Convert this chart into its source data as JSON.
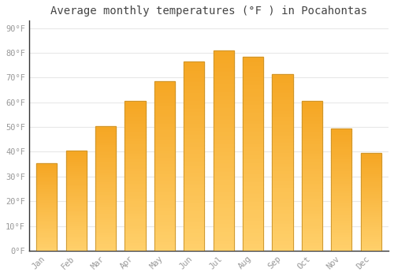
{
  "title": "Average monthly temperatures (°F ) in Pocahontas",
  "months": [
    "Jan",
    "Feb",
    "Mar",
    "Apr",
    "May",
    "Jun",
    "Jul",
    "Aug",
    "Sep",
    "Oct",
    "Nov",
    "Dec"
  ],
  "values": [
    35.5,
    40.5,
    50.5,
    60.5,
    68.5,
    76.5,
    81.0,
    78.5,
    71.5,
    60.5,
    49.5,
    39.5
  ],
  "bar_color_top": "#F5A623",
  "bar_color_bottom": "#FFD06B",
  "bar_edge_color": "#C8922A",
  "background_color": "#FFFFFF",
  "grid_color": "#E8E8E8",
  "title_color": "#444444",
  "tick_color": "#999999",
  "spine_color": "#333333",
  "ylabel_ticks": [
    0,
    10,
    20,
    30,
    40,
    50,
    60,
    70,
    80,
    90
  ],
  "ylim": [
    0,
    93
  ],
  "title_fontsize": 10,
  "bar_width": 0.7
}
